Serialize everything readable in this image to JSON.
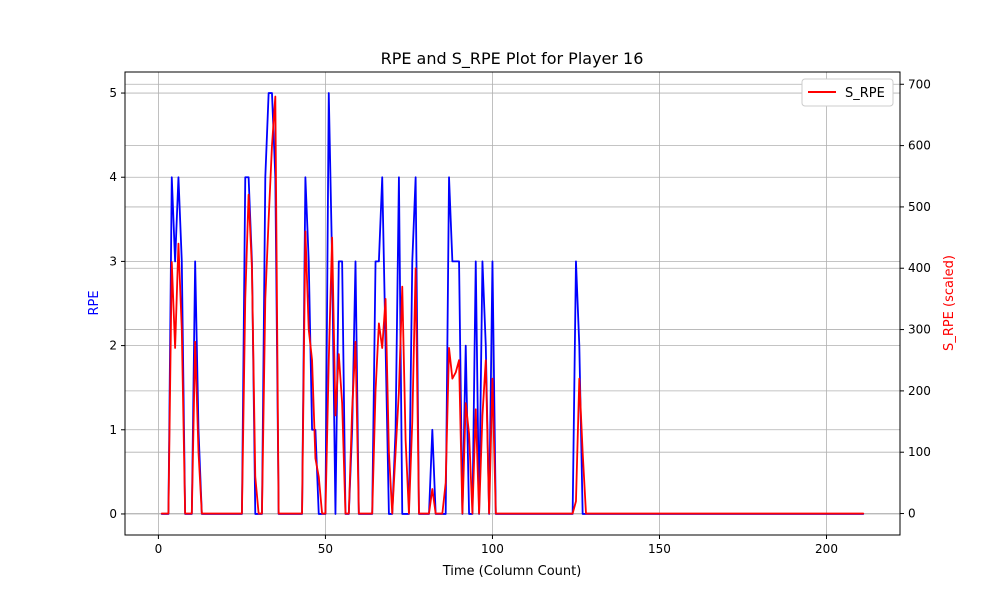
{
  "chart_data": {
    "type": "line",
    "title": "RPE and S_RPE Plot for Player 16",
    "xlabel": "Time (Column Count)",
    "ylabel": "RPE",
    "y2label": "S_RPE (scaled)",
    "xlim": [
      -10,
      222
    ],
    "ylim": [
      -0.25,
      5.25
    ],
    "y2lim": [
      -35,
      720
    ],
    "x_ticks": [
      0,
      50,
      100,
      150,
      200
    ],
    "y_ticks": [
      0,
      1,
      2,
      3,
      4,
      5
    ],
    "y2_ticks": [
      0,
      100,
      200,
      300,
      400,
      500,
      600,
      700
    ],
    "grid": true,
    "legend": {
      "position": "top-right",
      "entries": [
        "S_RPE"
      ]
    },
    "colors": {
      "rpe": "#0000ff",
      "s_rpe": "#ff0000",
      "grid": "#b0b0b0",
      "axis": "#000000"
    },
    "series": [
      {
        "name": "RPE",
        "axis": "left",
        "color": "#0000ff",
        "x": [
          1,
          2,
          3,
          4,
          5,
          6,
          7,
          8,
          9,
          10,
          11,
          12,
          13,
          20,
          25,
          26,
          27,
          28,
          29,
          30,
          31,
          32,
          33,
          34,
          35,
          36,
          37,
          43,
          44,
          45,
          46,
          47,
          48,
          49,
          50,
          51,
          52,
          53,
          54,
          55,
          56,
          57,
          58,
          59,
          60,
          63,
          64,
          65,
          66,
          67,
          68,
          69,
          70,
          71,
          72,
          73,
          74,
          75,
          76,
          77,
          78,
          79,
          80,
          81,
          82,
          83,
          84,
          85,
          86,
          87,
          88,
          89,
          90,
          91,
          92,
          93,
          94,
          95,
          96,
          97,
          98,
          99,
          100,
          101,
          102,
          110,
          120,
          124,
          125,
          126,
          127,
          128,
          130,
          150,
          180,
          211
        ],
        "y": [
          0,
          0,
          0,
          4,
          3,
          4,
          3,
          0,
          0,
          0,
          3,
          1,
          0,
          0,
          0,
          4,
          4,
          3,
          0,
          0,
          0,
          4,
          5,
          5,
          4,
          0,
          0,
          0,
          4,
          3,
          1,
          1,
          0,
          0,
          0,
          5,
          3,
          0,
          3,
          3,
          0,
          0,
          1,
          3,
          0,
          0,
          0,
          3,
          3,
          4,
          2,
          0,
          0,
          1,
          4,
          0,
          0,
          0,
          3,
          4,
          0,
          0,
          0,
          0,
          1,
          0,
          0,
          0,
          0,
          4,
          3,
          3,
          3,
          0,
          2,
          0,
          0,
          3,
          0,
          3,
          2,
          0,
          3,
          0,
          0,
          0,
          0,
          0,
          3,
          2,
          0,
          0,
          0,
          0,
          0,
          0
        ]
      },
      {
        "name": "S_RPE",
        "axis": "right",
        "color": "#ff0000",
        "x": [
          1,
          2,
          3,
          4,
          5,
          6,
          7,
          8,
          9,
          10,
          11,
          12,
          13,
          20,
          25,
          26,
          27,
          28,
          29,
          30,
          31,
          32,
          33,
          34,
          35,
          36,
          37,
          43,
          44,
          45,
          46,
          47,
          48,
          49,
          50,
          51,
          52,
          53,
          54,
          55,
          56,
          57,
          58,
          59,
          60,
          63,
          64,
          65,
          66,
          67,
          68,
          69,
          70,
          71,
          72,
          73,
          74,
          75,
          76,
          77,
          78,
          79,
          80,
          81,
          82,
          83,
          84,
          85,
          86,
          87,
          88,
          89,
          90,
          91,
          92,
          93,
          94,
          95,
          96,
          97,
          98,
          99,
          100,
          101,
          102,
          110,
          120,
          124,
          125,
          126,
          127,
          128,
          130,
          150,
          180,
          211
        ],
        "y": [
          0,
          0,
          0,
          410,
          270,
          440,
          300,
          0,
          0,
          0,
          280,
          100,
          0,
          0,
          0,
          350,
          520,
          400,
          60,
          0,
          0,
          350,
          480,
          600,
          680,
          0,
          0,
          0,
          460,
          300,
          250,
          90,
          60,
          0,
          0,
          250,
          450,
          160,
          260,
          180,
          0,
          0,
          170,
          280,
          0,
          0,
          0,
          200,
          310,
          270,
          350,
          100,
          0,
          100,
          200,
          370,
          120,
          0,
          150,
          400,
          0,
          0,
          0,
          0,
          40,
          0,
          0,
          0,
          50,
          270,
          220,
          230,
          250,
          0,
          180,
          130,
          0,
          170,
          0,
          160,
          250,
          0,
          220,
          0,
          0,
          0,
          0,
          0,
          20,
          220,
          100,
          0,
          0,
          0,
          0,
          0
        ]
      }
    ]
  }
}
